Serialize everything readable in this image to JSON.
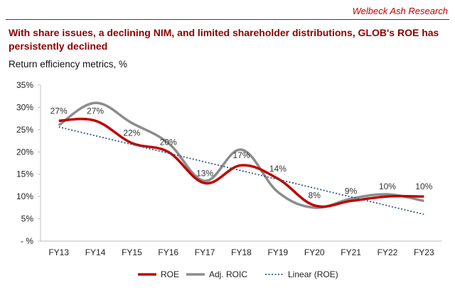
{
  "brand": "Welbeck Ash Research",
  "title": "With share issues, a declining NIM, and limited shareholder distributions, GLOB's ROE has persistently declined",
  "subtitle": "Return efficiency metrics, %",
  "colors": {
    "roe": "#c00000",
    "roic": "#8c8c8c",
    "trend": "#2e5a87",
    "brand": "#c00000"
  },
  "chart_data": {
    "type": "line",
    "categories": [
      "FY13",
      "FY14",
      "FY15",
      "FY16",
      "FY17",
      "FY18",
      "FY19",
      "FY20",
      "FY21",
      "FY22",
      "FY23"
    ],
    "y_ticks": [
      0,
      5,
      10,
      15,
      20,
      25,
      30,
      35
    ],
    "y_tick_labels": [
      "- %",
      "5%",
      "10%",
      "15%",
      "20%",
      "25%",
      "30%",
      "35%"
    ],
    "ylim": [
      0,
      35
    ],
    "grid": false,
    "legend_position": "bottom",
    "series": [
      {
        "name": "ROE",
        "values": [
          27,
          27,
          22,
          20,
          13,
          17,
          14,
          8,
          9,
          10,
          10
        ],
        "data_labels": [
          "27%",
          "27%",
          "22%",
          "20%",
          "13%",
          "17%",
          "14%",
          "8%",
          "9%",
          "10%",
          "10%"
        ]
      },
      {
        "name": "Adj. ROIC",
        "values": [
          26,
          31,
          26.5,
          22,
          13.5,
          20.5,
          11,
          7.5,
          9.5,
          10.5,
          9
        ]
      },
      {
        "name": "Linear (ROE)",
        "values": [
          25.6,
          23.6,
          21.6,
          19.6,
          17.6,
          15.6,
          13.6,
          11.6,
          9.6,
          7.6,
          6.0
        ]
      }
    ]
  }
}
